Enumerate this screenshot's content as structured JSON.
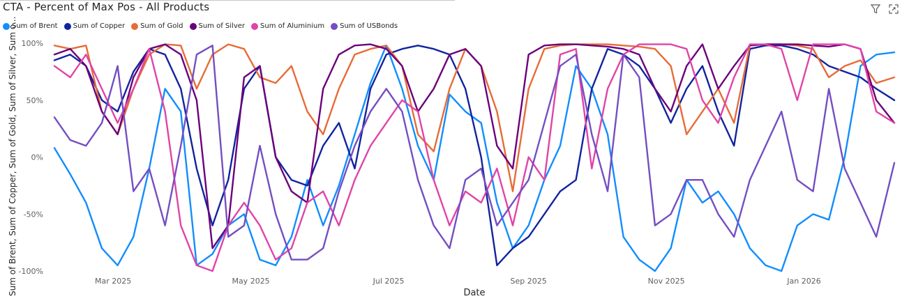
{
  "title": "CTA - Percent of Max Pos - All Products",
  "toolbar": {
    "filter_icon": "filter-icon",
    "focus_icon": "focus-mode-icon"
  },
  "chart_data": {
    "type": "line",
    "xlabel": "Date",
    "ylabel": "Sum of Brent, Sum of Copper, Sum of Gold, Sum of Silver, Sum o...",
    "ylim": [
      -100,
      100
    ],
    "y_ticks": [
      "100%",
      "50%",
      "0%",
      "-50%",
      "-100%"
    ],
    "y_tick_values": [
      100,
      50,
      0,
      -50,
      -100
    ],
    "x_ticks": [
      "Mar 2025",
      "May 2025",
      "Jul 2025",
      "Sep 2025",
      "Nov 2025",
      "Jan 2026"
    ],
    "x_tick_dates": [
      "2025-03-01",
      "2025-05-01",
      "2025-07-01",
      "2025-09-01",
      "2025-11-01",
      "2026-01-01"
    ],
    "x_range": [
      "2025-02-03",
      "2026-02-10"
    ],
    "legend_position": "top-left",
    "grid": false,
    "series": [
      {
        "name": "Sum of Brent",
        "color": "#118DFF",
        "dates": [
          "2025-02-03",
          "2025-02-10",
          "2025-02-17",
          "2025-02-24",
          "2025-03-03",
          "2025-03-10",
          "2025-03-17",
          "2025-03-24",
          "2025-03-31",
          "2025-04-07",
          "2025-04-14",
          "2025-04-21",
          "2025-04-28",
          "2025-05-05",
          "2025-05-12",
          "2025-05-19",
          "2025-05-26",
          "2025-06-02",
          "2025-06-09",
          "2025-06-16",
          "2025-06-23",
          "2025-06-30",
          "2025-07-07",
          "2025-07-14",
          "2025-07-21",
          "2025-07-28",
          "2025-08-04",
          "2025-08-11",
          "2025-08-18",
          "2025-08-25",
          "2025-09-01",
          "2025-09-08",
          "2025-09-15",
          "2025-09-22",
          "2025-09-29",
          "2025-10-06",
          "2025-10-13",
          "2025-10-20",
          "2025-10-27",
          "2025-11-03",
          "2025-11-10",
          "2025-11-17",
          "2025-11-24",
          "2025-12-01",
          "2025-12-08",
          "2025-12-15",
          "2025-12-22",
          "2025-12-29",
          "2026-01-05",
          "2026-01-12",
          "2026-01-19",
          "2026-01-26",
          "2026-02-02",
          "2026-02-10"
        ],
        "values": [
          8,
          -15,
          -40,
          -80,
          -95,
          -70,
          -10,
          60,
          40,
          -95,
          -85,
          -60,
          -50,
          -90,
          -95,
          -70,
          -20,
          -60,
          -25,
          20,
          65,
          98,
          60,
          10,
          -20,
          55,
          40,
          30,
          -40,
          -80,
          -60,
          -20,
          10,
          80,
          60,
          20,
          -70,
          -90,
          -100,
          -80,
          -20,
          -40,
          -30,
          -50,
          -80,
          -95,
          -100,
          -60,
          -50,
          -55,
          0,
          80,
          90,
          92
        ]
      },
      {
        "name": "Sum of Copper",
        "color": "#12239E",
        "dates": [
          "2025-02-03",
          "2025-02-10",
          "2025-02-17",
          "2025-02-24",
          "2025-03-03",
          "2025-03-10",
          "2025-03-17",
          "2025-03-24",
          "2025-03-31",
          "2025-04-07",
          "2025-04-14",
          "2025-04-21",
          "2025-04-28",
          "2025-05-05",
          "2025-05-12",
          "2025-05-19",
          "2025-05-26",
          "2025-06-02",
          "2025-06-09",
          "2025-06-16",
          "2025-06-23",
          "2025-06-30",
          "2025-07-07",
          "2025-07-14",
          "2025-07-21",
          "2025-07-28",
          "2025-08-04",
          "2025-08-11",
          "2025-08-18",
          "2025-08-25",
          "2025-09-01",
          "2025-09-08",
          "2025-09-15",
          "2025-09-22",
          "2025-09-29",
          "2025-10-06",
          "2025-10-13",
          "2025-10-20",
          "2025-10-27",
          "2025-11-03",
          "2025-11-10",
          "2025-11-17",
          "2025-11-24",
          "2025-12-01",
          "2025-12-08",
          "2025-12-15",
          "2025-12-22",
          "2025-12-29",
          "2026-01-05",
          "2026-01-12",
          "2026-01-19",
          "2026-01-26",
          "2026-02-02",
          "2026-02-10"
        ],
        "values": [
          85,
          90,
          80,
          50,
          40,
          75,
          95,
          90,
          60,
          -10,
          -60,
          -20,
          60,
          80,
          0,
          -20,
          -25,
          10,
          30,
          -10,
          60,
          90,
          95,
          98,
          95,
          90,
          60,
          0,
          -95,
          -80,
          -70,
          -50,
          -30,
          -20,
          60,
          95,
          90,
          80,
          60,
          30,
          60,
          80,
          40,
          10,
          95,
          98,
          98,
          95,
          90,
          80,
          75,
          70,
          60,
          50
        ]
      },
      {
        "name": "Sum of Gold",
        "color": "#E66C37",
        "dates": [
          "2025-02-03",
          "2025-02-10",
          "2025-02-17",
          "2025-02-24",
          "2025-03-03",
          "2025-03-10",
          "2025-03-17",
          "2025-03-24",
          "2025-03-31",
          "2025-04-07",
          "2025-04-14",
          "2025-04-21",
          "2025-04-28",
          "2025-05-05",
          "2025-05-12",
          "2025-05-19",
          "2025-05-26",
          "2025-06-02",
          "2025-06-09",
          "2025-06-16",
          "2025-06-23",
          "2025-06-30",
          "2025-07-07",
          "2025-07-14",
          "2025-07-21",
          "2025-07-28",
          "2025-08-04",
          "2025-08-11",
          "2025-08-18",
          "2025-08-25",
          "2025-09-01",
          "2025-09-08",
          "2025-09-15",
          "2025-09-22",
          "2025-09-29",
          "2025-10-06",
          "2025-10-13",
          "2025-10-20",
          "2025-10-27",
          "2025-11-03",
          "2025-11-10",
          "2025-11-17",
          "2025-11-24",
          "2025-12-01",
          "2025-12-08",
          "2025-12-15",
          "2025-12-22",
          "2025-12-29",
          "2026-01-05",
          "2026-01-12",
          "2026-01-19",
          "2026-01-26",
          "2026-02-02",
          "2026-02-10"
        ],
        "values": [
          98,
          95,
          98,
          40,
          20,
          60,
          90,
          99,
          98,
          60,
          90,
          99,
          95,
          70,
          65,
          80,
          40,
          20,
          60,
          90,
          95,
          98,
          80,
          20,
          5,
          60,
          95,
          80,
          40,
          -30,
          60,
          95,
          98,
          99,
          99,
          99,
          98,
          97,
          95,
          80,
          20,
          40,
          60,
          30,
          98,
          99,
          99,
          98,
          95,
          70,
          80,
          85,
          65,
          70
        ]
      },
      {
        "name": "Sum of Silver",
        "color": "#6B007B",
        "dates": [
          "2025-02-03",
          "2025-02-10",
          "2025-02-17",
          "2025-02-24",
          "2025-03-03",
          "2025-03-10",
          "2025-03-17",
          "2025-03-24",
          "2025-03-31",
          "2025-04-07",
          "2025-04-14",
          "2025-04-21",
          "2025-04-28",
          "2025-05-05",
          "2025-05-12",
          "2025-05-19",
          "2025-05-26",
          "2025-06-02",
          "2025-06-09",
          "2025-06-16",
          "2025-06-23",
          "2025-06-30",
          "2025-07-07",
          "2025-07-14",
          "2025-07-21",
          "2025-07-28",
          "2025-08-04",
          "2025-08-11",
          "2025-08-18",
          "2025-08-25",
          "2025-09-01",
          "2025-09-08",
          "2025-09-15",
          "2025-09-22",
          "2025-09-29",
          "2025-10-06",
          "2025-10-13",
          "2025-10-20",
          "2025-10-27",
          "2025-11-03",
          "2025-11-10",
          "2025-11-17",
          "2025-11-24",
          "2025-12-01",
          "2025-12-08",
          "2025-12-15",
          "2025-12-22",
          "2025-12-29",
          "2026-01-05",
          "2026-01-12",
          "2026-01-19",
          "2026-01-26",
          "2026-02-02",
          "2026-02-10"
        ],
        "values": [
          90,
          95,
          80,
          40,
          20,
          70,
          95,
          99,
          90,
          50,
          -80,
          -60,
          70,
          80,
          0,
          -30,
          -40,
          60,
          90,
          98,
          99,
          95,
          80,
          40,
          60,
          90,
          95,
          80,
          10,
          -10,
          90,
          98,
          99,
          99,
          98,
          97,
          95,
          90,
          60,
          40,
          80,
          99,
          60,
          80,
          98,
          99,
          99,
          99,
          98,
          97,
          99,
          95,
          50,
          30
        ]
      },
      {
        "name": "Sum of Aluminium",
        "color": "#E044A7",
        "dates": [
          "2025-02-03",
          "2025-02-10",
          "2025-02-17",
          "2025-02-24",
          "2025-03-03",
          "2025-03-10",
          "2025-03-17",
          "2025-03-24",
          "2025-03-31",
          "2025-04-07",
          "2025-04-14",
          "2025-04-21",
          "2025-04-28",
          "2025-05-05",
          "2025-05-12",
          "2025-05-19",
          "2025-05-26",
          "2025-06-02",
          "2025-06-09",
          "2025-06-16",
          "2025-06-23",
          "2025-06-30",
          "2025-07-07",
          "2025-07-14",
          "2025-07-21",
          "2025-07-28",
          "2025-08-04",
          "2025-08-11",
          "2025-08-18",
          "2025-08-25",
          "2025-09-01",
          "2025-09-08",
          "2025-09-15",
          "2025-09-22",
          "2025-09-29",
          "2025-10-06",
          "2025-10-13",
          "2025-10-20",
          "2025-10-27",
          "2025-11-03",
          "2025-11-10",
          "2025-11-17",
          "2025-11-24",
          "2025-12-01",
          "2025-12-08",
          "2025-12-15",
          "2025-12-22",
          "2025-12-29",
          "2026-01-05",
          "2026-01-12",
          "2026-01-19",
          "2026-01-26",
          "2026-02-02",
          "2026-02-10"
        ],
        "values": [
          80,
          70,
          90,
          60,
          30,
          60,
          95,
          40,
          -60,
          -95,
          -100,
          -60,
          -40,
          -60,
          -90,
          -80,
          -40,
          -30,
          -60,
          -20,
          10,
          30,
          50,
          40,
          -20,
          -60,
          -30,
          -40,
          -10,
          -60,
          0,
          -20,
          90,
          95,
          -10,
          60,
          90,
          99,
          99,
          99,
          95,
          50,
          30,
          70,
          99,
          99,
          95,
          50,
          99,
          99,
          99,
          95,
          40,
          30
        ]
      },
      {
        "name": "Sum of USBonds",
        "color": "#744EC2",
        "dates": [
          "2025-02-03",
          "2025-02-10",
          "2025-02-17",
          "2025-02-24",
          "2025-03-03",
          "2025-03-10",
          "2025-03-17",
          "2025-03-24",
          "2025-03-31",
          "2025-04-07",
          "2025-04-14",
          "2025-04-21",
          "2025-04-28",
          "2025-05-05",
          "2025-05-12",
          "2025-05-19",
          "2025-05-26",
          "2025-06-02",
          "2025-06-09",
          "2025-06-16",
          "2025-06-23",
          "2025-06-30",
          "2025-07-07",
          "2025-07-14",
          "2025-07-21",
          "2025-07-28",
          "2025-08-04",
          "2025-08-11",
          "2025-08-18",
          "2025-08-25",
          "2025-09-01",
          "2025-09-08",
          "2025-09-15",
          "2025-09-22",
          "2025-09-29",
          "2025-10-06",
          "2025-10-13",
          "2025-10-20",
          "2025-10-27",
          "2025-11-03",
          "2025-11-10",
          "2025-11-17",
          "2025-11-24",
          "2025-12-01",
          "2025-12-08",
          "2025-12-15",
          "2025-12-22",
          "2025-12-29",
          "2026-01-05",
          "2026-01-12",
          "2026-01-19",
          "2026-01-26",
          "2026-02-02",
          "2026-02-10"
        ],
        "values": [
          35,
          15,
          10,
          30,
          80,
          -30,
          -10,
          -60,
          10,
          90,
          98,
          -70,
          -60,
          10,
          -50,
          -90,
          -90,
          -80,
          -30,
          10,
          40,
          60,
          40,
          -20,
          -60,
          -80,
          -20,
          -10,
          -60,
          -40,
          -20,
          30,
          80,
          90,
          20,
          -30,
          90,
          70,
          -60,
          -50,
          -20,
          -20,
          -50,
          -70,
          -20,
          10,
          40,
          -20,
          -30,
          60,
          -10,
          -40,
          -70,
          -5
        ]
      }
    ]
  }
}
